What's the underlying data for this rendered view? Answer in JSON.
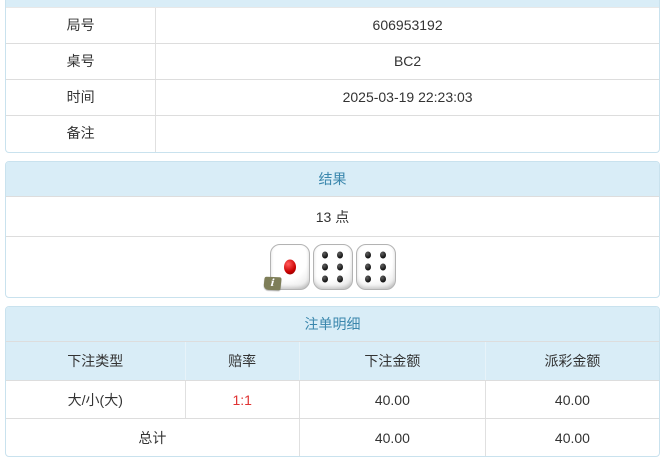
{
  "colors": {
    "heading_bg": "#d9edf7",
    "heading_text": "#3a87ad",
    "panel_border": "#c9e2ee",
    "odds_red": "#e03333"
  },
  "info_panel": {
    "rows": [
      {
        "label": "局号",
        "value": "606953192"
      },
      {
        "label": "桌号",
        "value": "BC2"
      },
      {
        "label": "时间",
        "value": "2025-03-19 22:23:03"
      },
      {
        "label": "备注",
        "value": ""
      }
    ]
  },
  "result_panel": {
    "heading": "结果",
    "points": "13 点",
    "info_badge": "i",
    "dice": [
      {
        "value": 1,
        "pip_color": "red",
        "has_info_badge": true
      },
      {
        "value": 6,
        "pip_color": "black",
        "has_info_badge": false
      },
      {
        "value": 6,
        "pip_color": "black",
        "has_info_badge": false
      }
    ]
  },
  "bets_panel": {
    "heading": "注单明细",
    "columns": [
      "下注类型",
      "赔率",
      "下注金额",
      "派彩金额"
    ],
    "rows": [
      {
        "bet_type": "大/小(大)",
        "odds": "1:1",
        "bet_amount": "40.00",
        "payout_amount": "40.00"
      }
    ],
    "total": {
      "label": "总计",
      "bet_amount": "40.00",
      "payout_amount": "40.00"
    }
  }
}
